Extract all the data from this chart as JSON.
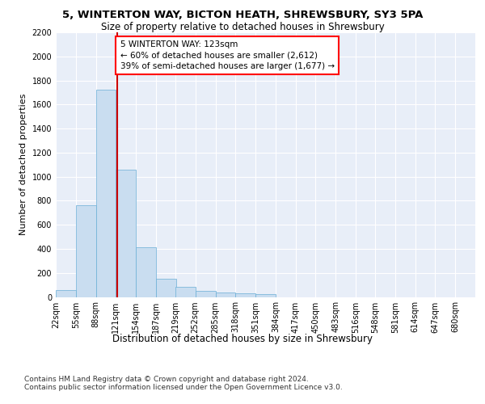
{
  "title1": "5, WINTERTON WAY, BICTON HEATH, SHREWSBURY, SY3 5PA",
  "title2": "Size of property relative to detached houses in Shrewsbury",
  "xlabel": "Distribution of detached houses by size in Shrewsbury",
  "ylabel": "Number of detached properties",
  "bar_color": "#c9ddf0",
  "bar_edge_color": "#6aaed6",
  "bin_labels": [
    "22sqm",
    "55sqm",
    "88sqm",
    "121sqm",
    "154sqm",
    "187sqm",
    "219sqm",
    "252sqm",
    "285sqm",
    "318sqm",
    "351sqm",
    "384sqm",
    "417sqm",
    "450sqm",
    "483sqm",
    "516sqm",
    "548sqm",
    "581sqm",
    "614sqm",
    "647sqm",
    "680sqm"
  ],
  "bar_heights": [
    55,
    760,
    1720,
    1055,
    415,
    150,
    85,
    50,
    40,
    30,
    22,
    0,
    0,
    0,
    0,
    0,
    0,
    0,
    0,
    0,
    0
  ],
  "bin_edges": [
    22,
    55,
    88,
    121,
    154,
    187,
    219,
    252,
    285,
    318,
    351,
    384,
    417,
    450,
    483,
    516,
    548,
    581,
    614,
    647,
    680
  ],
  "bin_width": 33,
  "property_size": 123,
  "red_line_x": 123,
  "annotation_text": "5 WINTERTON WAY: 123sqm\n← 60% of detached houses are smaller (2,612)\n39% of semi-detached houses are larger (1,677) →",
  "annotation_box_color": "white",
  "annotation_box_edge_color": "red",
  "red_line_color": "#cc0000",
  "ylim": [
    0,
    2200
  ],
  "yticks": [
    0,
    200,
    400,
    600,
    800,
    1000,
    1200,
    1400,
    1600,
    1800,
    2000,
    2200
  ],
  "background_color": "#e8eef8",
  "footer_text": "Contains HM Land Registry data © Crown copyright and database right 2024.\nContains public sector information licensed under the Open Government Licence v3.0.",
  "title1_fontsize": 9.5,
  "title2_fontsize": 8.5,
  "xlabel_fontsize": 8.5,
  "ylabel_fontsize": 8,
  "tick_fontsize": 7,
  "annotation_fontsize": 7.5,
  "footer_fontsize": 6.5
}
